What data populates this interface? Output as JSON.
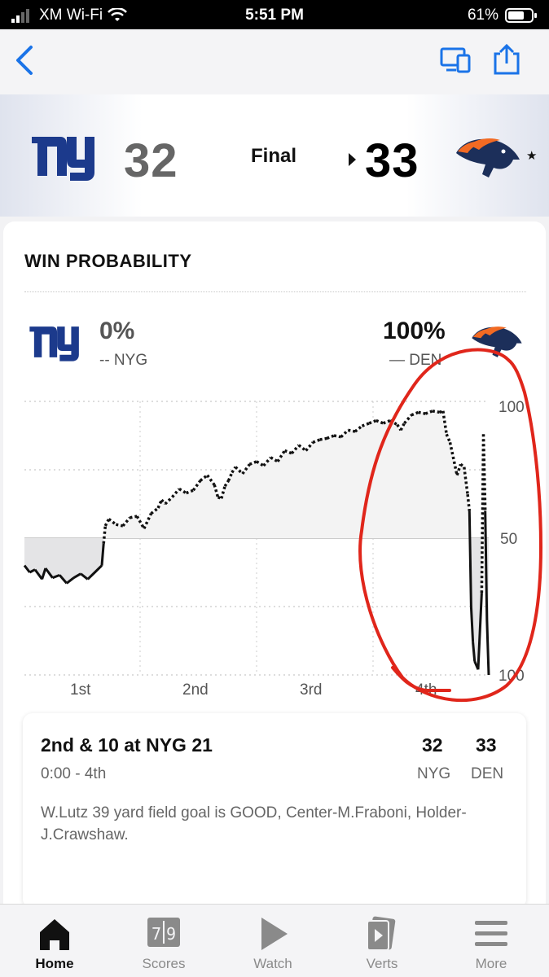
{
  "status_bar": {
    "carrier": "XM Wi-Fi",
    "time": "5:51 PM",
    "battery": "61%"
  },
  "game": {
    "status": "Final",
    "away": {
      "abbr": "NYG",
      "score": "32",
      "win_pct": "0%",
      "legend": "-- NYG"
    },
    "home": {
      "abbr": "DEN",
      "score": "33",
      "win_pct": "100%",
      "legend": "— DEN"
    }
  },
  "win_probability": {
    "title": "WIN PROBABILITY"
  },
  "chart_data": {
    "type": "line",
    "title": "WIN PROBABILITY",
    "x_categories": [
      "1st",
      "2nd",
      "3rd",
      "4th"
    ],
    "y_tick_labels": [
      "100",
      "50",
      "100"
    ],
    "ylim": [
      0,
      100
    ],
    "series": [
      {
        "name": "NYG (dotted, above 50 = NYG favored)",
        "style": "dotted"
      },
      {
        "name": "DEN (solid, below 50 = DEN favored)",
        "style": "solid"
      }
    ],
    "points": [
      [
        0,
        40
      ],
      [
        1.5,
        37.5
      ],
      [
        3,
        38.5
      ],
      [
        5,
        35
      ],
      [
        6,
        39
      ],
      [
        8,
        35.5
      ],
      [
        10,
        36.5
      ],
      [
        12,
        33.5
      ],
      [
        14,
        35.5
      ],
      [
        16,
        37
      ],
      [
        18,
        35
      ],
      [
        20,
        37.5
      ],
      [
        22,
        40
      ],
      [
        22.5,
        48
      ],
      [
        23,
        54.5
      ],
      [
        24,
        57
      ],
      [
        26,
        55
      ],
      [
        28,
        54.5
      ],
      [
        30,
        57.5
      ],
      [
        32,
        58
      ],
      [
        34,
        53.5
      ],
      [
        36,
        59
      ],
      [
        38,
        61
      ],
      [
        39,
        64
      ],
      [
        40,
        62.5
      ],
      [
        42,
        65
      ],
      [
        44,
        68
      ],
      [
        46,
        66.5
      ],
      [
        48,
        67.5
      ],
      [
        50,
        71
      ],
      [
        52,
        73
      ],
      [
        54,
        69.5
      ],
      [
        55,
        65
      ],
      [
        56,
        64.5
      ],
      [
        57,
        69
      ],
      [
        58,
        71
      ],
      [
        59,
        74
      ],
      [
        60,
        76
      ],
      [
        62,
        73.5
      ],
      [
        64,
        77
      ],
      [
        66,
        78
      ],
      [
        68,
        76.5
      ],
      [
        70,
        79.5
      ],
      [
        72,
        78
      ],
      [
        74,
        82
      ],
      [
        76,
        81
      ],
      [
        78,
        84
      ],
      [
        80,
        82
      ],
      [
        82,
        85
      ],
      [
        84,
        86
      ],
      [
        86,
        86.5
      ],
      [
        88,
        87.5
      ],
      [
        90,
        87
      ],
      [
        92,
        89.5
      ],
      [
        94,
        89
      ],
      [
        96,
        91
      ],
      [
        98,
        92
      ],
      [
        100,
        93
      ],
      [
        102,
        92
      ],
      [
        104,
        93
      ],
      [
        106,
        91.5
      ],
      [
        107,
        89.5
      ],
      [
        108,
        92
      ],
      [
        110,
        95
      ],
      [
        112,
        96
      ],
      [
        114,
        95.5
      ],
      [
        116,
        96.5
      ],
      [
        118,
        96
      ],
      [
        119,
        96.5
      ],
      [
        120,
        88
      ],
      [
        121,
        85
      ],
      [
        123,
        73
      ],
      [
        124,
        77
      ],
      [
        125,
        76
      ],
      [
        126,
        66
      ],
      [
        126.5,
        60
      ],
      [
        127,
        25
      ],
      [
        127.5,
        12
      ],
      [
        128,
        5
      ],
      [
        129,
        2
      ],
      [
        130,
        30
      ],
      [
        130.5,
        88
      ],
      [
        131,
        60
      ],
      [
        131.5,
        20
      ],
      [
        132,
        0
      ]
    ],
    "max_time": 132,
    "annotation": "red hand-drawn circle around 4th quarter swing"
  },
  "last_play": {
    "down_distance": "2nd & 10 at NYG 21",
    "clock": "0:00 - 4th",
    "description": "W.Lutz 39 yard field goal is GOOD, Center-M.Fraboni, Holder-J.Crawshaw."
  },
  "tabs": [
    {
      "label": "Home",
      "icon": "home-icon"
    },
    {
      "label": "Scores",
      "icon": "scoreboard-icon"
    },
    {
      "label": "Watch",
      "icon": "play-icon"
    },
    {
      "label": "Verts",
      "icon": "verts-icon"
    },
    {
      "label": "More",
      "icon": "menu-icon"
    }
  ],
  "colors": {
    "accent": "#1a73e8",
    "annotation": "#e0261b",
    "nyg_blue": "#1c3a8c",
    "den_orange": "#f26a23"
  }
}
